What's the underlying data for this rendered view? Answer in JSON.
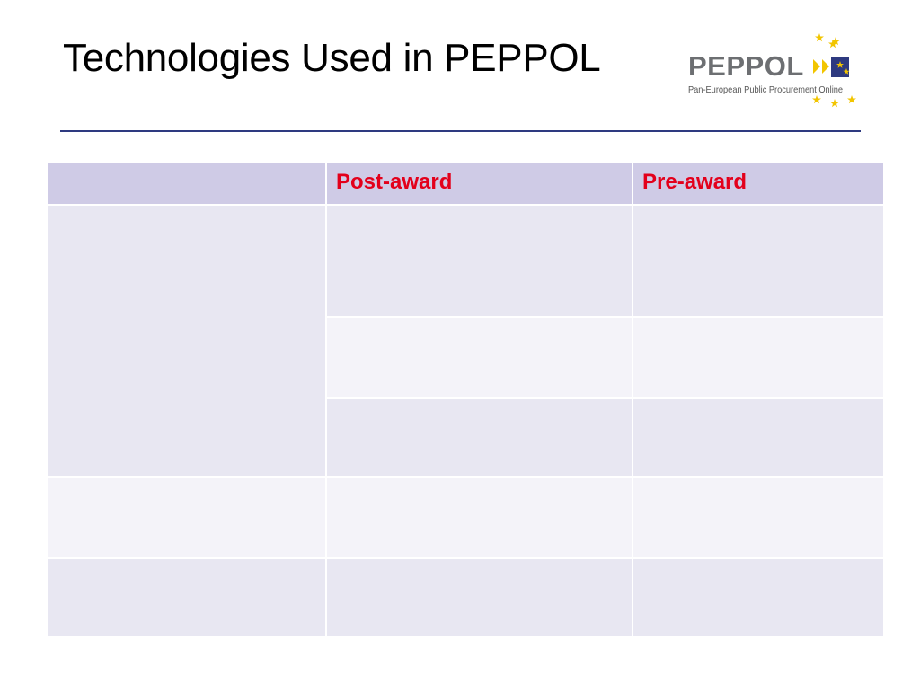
{
  "slide": {
    "title": "Technologies Used in PEPPOL"
  },
  "logo": {
    "word": "PEPPOL",
    "tagline": "Pan-European Public Procurement Online"
  },
  "colors": {
    "rule": "#2e3a80",
    "header_fill": "#cfcbe6",
    "row_dark": "#e8e7f2",
    "row_light": "#f4f3f9",
    "header_text": "#e3001b",
    "star": "#f2c500",
    "logo_blue": "#2e3a80"
  },
  "table": {
    "headers": [
      "",
      "Post-award",
      "Pre-award"
    ],
    "rows": [
      [
        "",
        "",
        ""
      ],
      [
        "",
        ""
      ],
      [
        "",
        ""
      ],
      [
        "",
        "",
        ""
      ],
      [
        "",
        "",
        ""
      ]
    ]
  }
}
